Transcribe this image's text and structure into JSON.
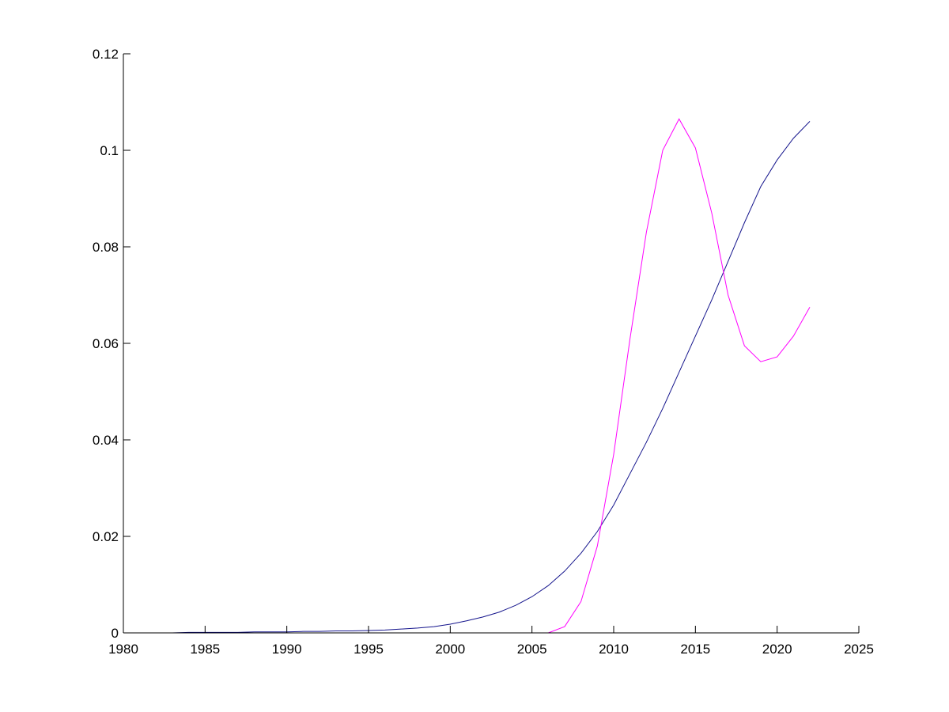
{
  "chart_data": {
    "type": "line",
    "x": [
      1980,
      1981,
      1982,
      1983,
      1984,
      1985,
      1986,
      1987,
      1988,
      1989,
      1990,
      1991,
      1992,
      1993,
      1994,
      1995,
      1996,
      1997,
      1998,
      1999,
      2000,
      2001,
      2002,
      2003,
      2004,
      2005,
      2006,
      2007,
      2008,
      2009,
      2010,
      2011,
      2012,
      2013,
      2014,
      2015,
      2016,
      2017,
      2018,
      2019,
      2020,
      2021,
      2022
    ],
    "series": [
      {
        "color": "#14148c",
        "values": [
          0,
          0,
          0,
          0,
          0.0001,
          0.0001,
          0.0001,
          0.0001,
          0.0002,
          0.0002,
          0.0002,
          0.0003,
          0.0003,
          0.0004,
          0.0004,
          0.0005,
          0.0006,
          0.0008,
          0.001,
          0.0013,
          0.0018,
          0.0025,
          0.0033,
          0.0043,
          0.0057,
          0.0075,
          0.0098,
          0.0128,
          0.0165,
          0.021,
          0.0265,
          0.033,
          0.0395,
          0.0465,
          0.054,
          0.0615,
          0.069,
          0.077,
          0.085,
          0.0925,
          0.098,
          0.1025,
          0.106
        ]
      },
      {
        "color": "#ff00ff",
        "values": [
          0,
          0,
          0,
          0,
          0,
          0,
          0,
          0,
          0,
          0,
          0,
          0,
          0,
          0,
          0,
          0,
          0,
          0,
          0,
          0,
          0,
          0,
          0,
          0,
          0,
          0,
          0,
          0.0013,
          0.0065,
          0.018,
          0.037,
          0.061,
          0.083,
          0.1,
          0.1065,
          0.1005,
          0.087,
          0.07,
          0.0595,
          0.0562,
          0.0572,
          0.0615,
          0.0675
        ]
      }
    ],
    "xlim": [
      1980,
      2025
    ],
    "xticks": [
      1980,
      1985,
      1990,
      1995,
      2000,
      2005,
      2010,
      2015,
      2020,
      2025
    ],
    "ylim": [
      0,
      0.12
    ],
    "yticks": [
      0,
      0.02,
      0.04,
      0.06,
      0.08,
      0.1,
      0.12
    ]
  }
}
